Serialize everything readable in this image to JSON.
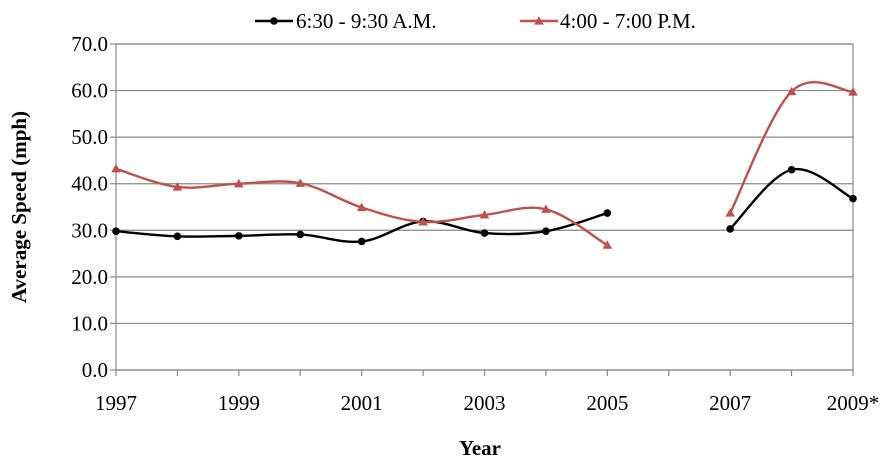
{
  "chart_data": {
    "type": "line",
    "title": "",
    "xlabel": "Year",
    "ylabel": "Average Speed (mph)",
    "ylim": [
      0,
      70
    ],
    "y_ticks": [
      "0.0",
      "10.0",
      "20.0",
      "30.0",
      "40.0",
      "50.0",
      "60.0",
      "70.0"
    ],
    "x_ticks": [
      "1997",
      "1999",
      "2001",
      "2003",
      "2005",
      "2007",
      "2009*"
    ],
    "grid": "horizontal",
    "legend_position": "top",
    "x_range": [
      1997,
      2009
    ],
    "series": [
      {
        "name": "6:30 - 9:30 A.M.",
        "color": "#000000",
        "marker": "circle",
        "segments": [
          {
            "x": [
              1997,
              1998,
              1999,
              2000,
              2001,
              2002,
              2003,
              2004,
              2005
            ],
            "y": [
              29.8,
              28.7,
              28.8,
              29.1,
              27.6,
              31.9,
              29.4,
              29.8,
              33.7
            ]
          },
          {
            "x": [
              2007,
              2008,
              2009
            ],
            "y": [
              30.3,
              43.0,
              36.8
            ]
          }
        ]
      },
      {
        "name": "4:00 - 7:00 P.M.",
        "color": "#c0504d",
        "marker": "triangle",
        "segments": [
          {
            "x": [
              1997,
              1998,
              1999,
              2000,
              2001,
              2002,
              2003,
              2004,
              2005
            ],
            "y": [
              43.2,
              39.3,
              40.0,
              40.1,
              34.9,
              31.8,
              33.3,
              34.5,
              26.8
            ]
          },
          {
            "x": [
              2007,
              2008,
              2009
            ],
            "y": [
              33.7,
              59.8,
              59.7
            ]
          }
        ]
      }
    ]
  }
}
